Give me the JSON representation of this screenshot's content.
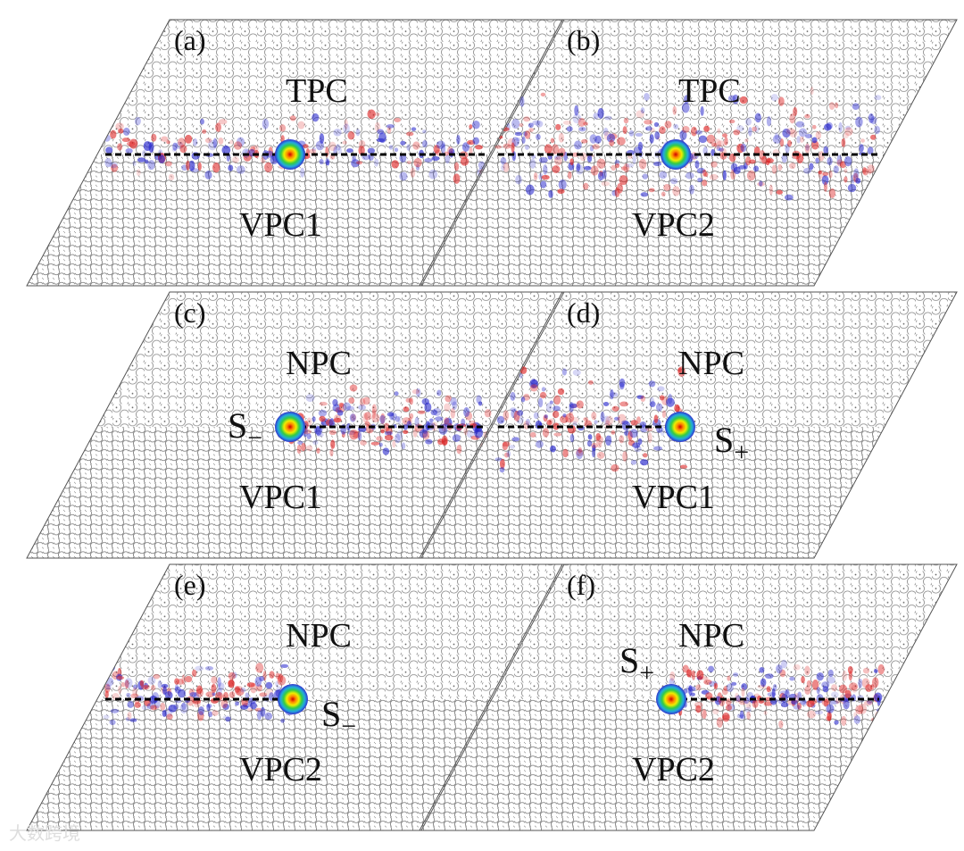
{
  "panels": [
    {
      "label": "(a)",
      "top": "TPC",
      "bottom": "VPC1"
    },
    {
      "label": "(b)",
      "top": "TPC",
      "bottom": "VPC2"
    },
    {
      "label": "(c)",
      "top": "NPC",
      "bottom": "VPC1",
      "source": {
        "symbol": "S",
        "subscript": "−"
      }
    },
    {
      "label": "(d)",
      "top": "NPC",
      "bottom": "VPC1",
      "source": {
        "symbol": "S",
        "subscript": "+"
      }
    },
    {
      "label": "(e)",
      "top": "NPC",
      "bottom": "VPC2",
      "source": {
        "symbol": "S",
        "subscript": "−"
      }
    },
    {
      "label": "(f)",
      "top": "NPC",
      "bottom": "VPC2",
      "source": {
        "symbol": "S",
        "subscript": "+"
      }
    }
  ],
  "watermark": "大数跨境"
}
